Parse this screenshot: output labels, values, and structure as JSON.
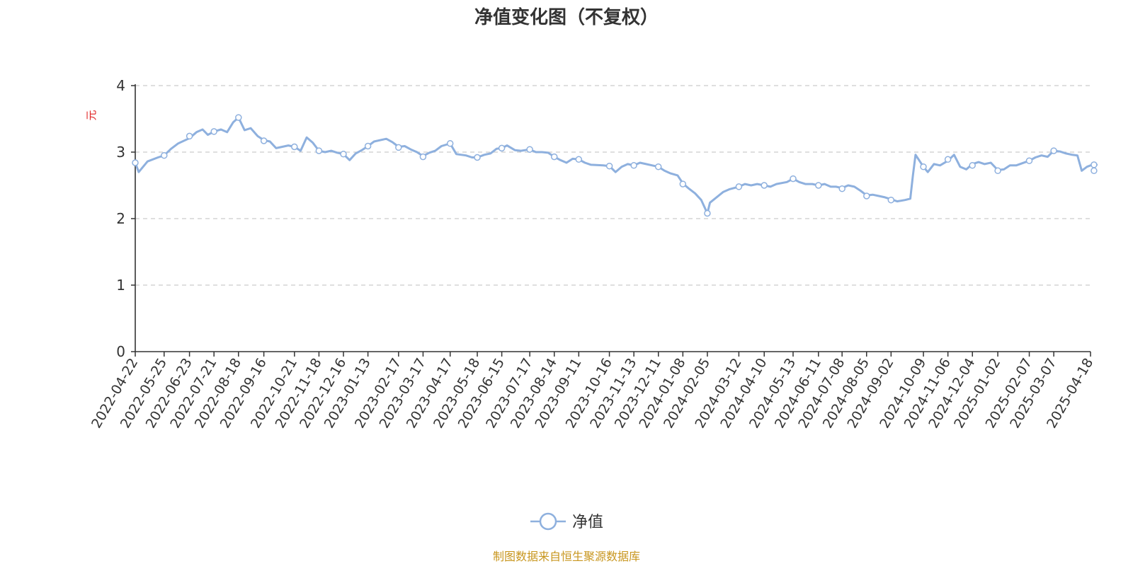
{
  "colors": {
    "line": "#8eb0de",
    "axis": "#333333",
    "grid": "#cccccc",
    "ylabel": "#e02020",
    "source": "#c8961e"
  },
  "chart_data": {
    "type": "line",
    "title": "净值变化图（不复权）",
    "ylabel": "元",
    "ylim": [
      0,
      4
    ],
    "yticks": [
      "0",
      "1",
      "2",
      "3",
      "4"
    ],
    "grid": "horizontal dashed",
    "legend_position": "bottom-center",
    "x_tick_labels": [
      "2022-04-22",
      "2022-05-25",
      "2022-06-23",
      "2022-07-21",
      "2022-08-18",
      "2022-09-16",
      "2022-10-21",
      "2022-11-18",
      "2022-12-16",
      "2023-01-13",
      "2023-02-17",
      "2023-03-17",
      "2023-04-17",
      "2023-05-18",
      "2023-06-15",
      "2023-07-17",
      "2023-08-14",
      "2023-09-11",
      "2023-10-16",
      "2023-11-13",
      "2023-12-11",
      "2024-01-08",
      "2024-02-05",
      "2024-03-12",
      "2024-04-10",
      "2024-05-13",
      "2024-06-11",
      "2024-07-08",
      "2024-08-05",
      "2024-09-02",
      "2024-10-09",
      "2024-11-06",
      "2024-12-04",
      "2025-01-02",
      "2025-02-07",
      "2025-03-07",
      "2025-04-18"
    ],
    "series": [
      {
        "name": "净值",
        "x": [
          "2022-04-22",
          "2022-04-26",
          "2022-05-06",
          "2022-05-18",
          "2022-05-25",
          "2022-06-02",
          "2022-06-10",
          "2022-06-23",
          "2022-07-01",
          "2022-07-08",
          "2022-07-14",
          "2022-07-21",
          "2022-07-29",
          "2022-08-05",
          "2022-08-12",
          "2022-08-18",
          "2022-08-25",
          "2022-09-01",
          "2022-09-09",
          "2022-09-16",
          "2022-09-23",
          "2022-09-30",
          "2022-10-14",
          "2022-10-21",
          "2022-10-28",
          "2022-11-04",
          "2022-11-11",
          "2022-11-18",
          "2022-11-25",
          "2022-12-02",
          "2022-12-09",
          "2022-12-16",
          "2022-12-23",
          "2022-12-30",
          "2023-01-06",
          "2023-01-13",
          "2023-01-20",
          "2023-02-03",
          "2023-02-10",
          "2023-02-17",
          "2023-02-24",
          "2023-03-03",
          "2023-03-10",
          "2023-03-17",
          "2023-03-24",
          "2023-03-31",
          "2023-04-07",
          "2023-04-17",
          "2023-04-24",
          "2023-05-05",
          "2023-05-12",
          "2023-05-18",
          "2023-05-26",
          "2023-06-02",
          "2023-06-09",
          "2023-06-15",
          "2023-06-21",
          "2023-06-30",
          "2023-07-07",
          "2023-07-17",
          "2023-07-24",
          "2023-07-31",
          "2023-08-07",
          "2023-08-14",
          "2023-08-21",
          "2023-08-28",
          "2023-09-04",
          "2023-09-11",
          "2023-09-18",
          "2023-09-25",
          "2023-10-09",
          "2023-10-16",
          "2023-10-23",
          "2023-10-30",
          "2023-11-06",
          "2023-11-13",
          "2023-11-20",
          "2023-11-27",
          "2023-12-04",
          "2023-12-11",
          "2023-12-18",
          "2023-12-25",
          "2024-01-02",
          "2024-01-08",
          "2024-01-15",
          "2024-01-22",
          "2024-01-29",
          "2024-02-05",
          "2024-02-08",
          "2024-02-23",
          "2024-03-01",
          "2024-03-12",
          "2024-03-19",
          "2024-03-26",
          "2024-04-02",
          "2024-04-10",
          "2024-04-17",
          "2024-04-24",
          "2024-05-06",
          "2024-05-13",
          "2024-05-20",
          "2024-05-27",
          "2024-06-04",
          "2024-06-11",
          "2024-06-18",
          "2024-06-25",
          "2024-07-01",
          "2024-07-08",
          "2024-07-15",
          "2024-07-22",
          "2024-07-29",
          "2024-08-05",
          "2024-08-12",
          "2024-08-19",
          "2024-08-26",
          "2024-09-02",
          "2024-09-09",
          "2024-09-18",
          "2024-09-24",
          "2024-09-27",
          "2024-09-30",
          "2024-10-09",
          "2024-10-14",
          "2024-10-21",
          "2024-10-28",
          "2024-11-06",
          "2024-11-13",
          "2024-11-20",
          "2024-11-27",
          "2024-12-04",
          "2024-12-11",
          "2024-12-18",
          "2024-12-25",
          "2025-01-02",
          "2025-01-09",
          "2025-01-16",
          "2025-01-23",
          "2025-02-07",
          "2025-02-14",
          "2025-02-21",
          "2025-02-28",
          "2025-03-07",
          "2025-03-14",
          "2025-03-21",
          "2025-03-28",
          "2025-04-03",
          "2025-04-08",
          "2025-04-14",
          "2025-04-18",
          "2025-04-25"
        ],
        "values": [
          2.84,
          2.7,
          2.86,
          2.92,
          2.95,
          3.05,
          3.13,
          3.21,
          3.3,
          3.34,
          3.26,
          3.31,
          3.34,
          3.3,
          3.45,
          3.52,
          3.33,
          3.36,
          3.24,
          3.18,
          3.16,
          3.06,
          3.1,
          3.08,
          3.02,
          3.22,
          3.14,
          3.02,
          3.0,
          3.02,
          2.99,
          2.97,
          2.88,
          2.98,
          3.03,
          3.09,
          3.16,
          3.2,
          3.15,
          3.08,
          3.09,
          3.04,
          3.0,
          2.94,
          2.99,
          3.02,
          3.09,
          3.13,
          2.97,
          2.95,
          2.92,
          2.92,
          2.96,
          2.98,
          3.05,
          3.06,
          3.1,
          3.03,
          3.02,
          3.04,
          3.0,
          3.0,
          2.99,
          2.93,
          2.88,
          2.84,
          2.9,
          2.89,
          2.84,
          2.81,
          2.8,
          2.79,
          2.7,
          2.78,
          2.82,
          2.8,
          2.84,
          2.82,
          2.8,
          2.78,
          2.72,
          2.68,
          2.65,
          2.53,
          2.45,
          2.38,
          2.28,
          2.08,
          2.24,
          2.4,
          2.44,
          2.48,
          2.52,
          2.5,
          2.52,
          2.5,
          2.48,
          2.52,
          2.55,
          2.6,
          2.55,
          2.52,
          2.52,
          2.5,
          2.52,
          2.48,
          2.48,
          2.46,
          2.5,
          2.48,
          2.42,
          2.35,
          2.36,
          2.34,
          2.32,
          2.29,
          2.26,
          2.28,
          2.3,
          2.65,
          2.96,
          2.78,
          2.7,
          2.82,
          2.8,
          2.87,
          2.96,
          2.78,
          2.74,
          2.82,
          2.85,
          2.82,
          2.84,
          2.73,
          2.74,
          2.8,
          2.8,
          2.87,
          2.92,
          2.95,
          2.93,
          3.02,
          3.01,
          2.98,
          2.96,
          2.95,
          2.72,
          2.78,
          2.8,
          2.81
        ]
      }
    ],
    "markers": [
      2.84,
      2.95,
      3.24,
      3.31,
      3.52,
      3.17,
      3.08,
      3.02,
      2.97,
      3.09,
      3.07,
      2.93,
      3.13,
      2.92,
      3.06,
      3.04,
      2.93,
      2.89,
      2.79,
      2.8,
      2.78,
      2.52,
      2.08,
      2.48,
      2.5,
      2.6,
      2.5,
      2.45,
      2.34,
      2.28,
      2.78,
      2.89,
      2.8,
      2.72,
      2.87,
      3.02,
      2.72,
      2.81
    ]
  },
  "legend": {
    "label": "净值"
  },
  "source_text": "制图数据来自恒生聚源数据库"
}
